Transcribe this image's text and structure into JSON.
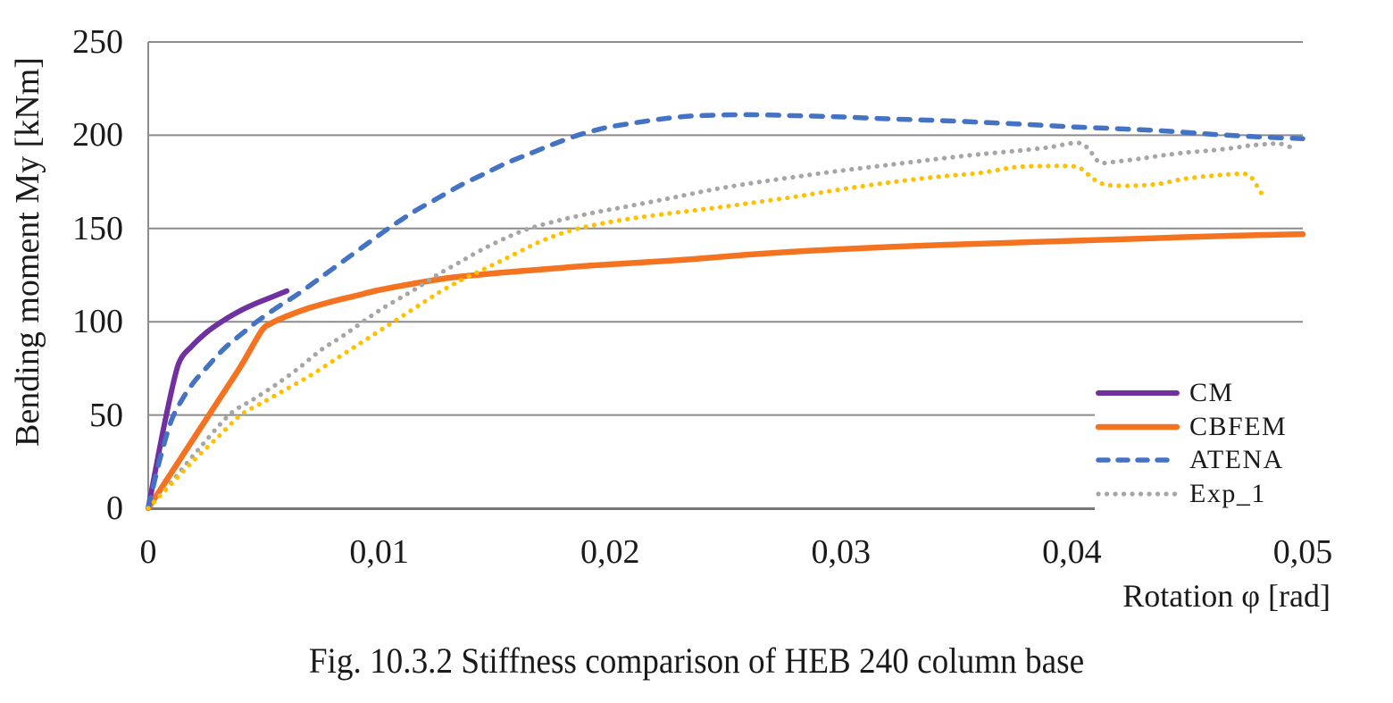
{
  "page": {
    "background": "#FFFFFF"
  },
  "chart_data": {
    "type": "line",
    "caption": "Fig. 10.3.2 Stiffness comparison of HEB 240 column base",
    "xlabel": "Rotation φ [rad]",
    "ylabel": "Bending moment My [kNm]",
    "xlim": [
      0,
      0.05
    ],
    "ylim": [
      0,
      250
    ],
    "x_ticks": {
      "values": [
        0,
        0.01,
        0.02,
        0.03,
        0.04,
        0.05
      ],
      "labels": [
        "0",
        "0,01",
        "0,02",
        "0,03",
        "0,04",
        "0,05"
      ]
    },
    "y_ticks": {
      "values": [
        0,
        50,
        100,
        150,
        200,
        250
      ],
      "labels": [
        "0",
        "50",
        "100",
        "150",
        "200",
        "250"
      ]
    },
    "grid": {
      "horizontal": true,
      "vertical": false
    },
    "style": {
      "grid_color": "#8C8C8C",
      "axis_color": "#767676",
      "text_color": "#1A1A1A"
    },
    "legend": {
      "position": "inside-bottom-right",
      "entries": [
        "CM",
        "CBFEM",
        "ATENA",
        "Exp_1"
      ]
    },
    "series": [
      {
        "name": "CM",
        "color": "#7030A0",
        "line_style": "solid",
        "width": 6,
        "in_legend": true,
        "points": [
          [
            0,
            0
          ],
          [
            0.0007,
            45
          ],
          [
            0.0013,
            77
          ],
          [
            0.0019,
            87
          ],
          [
            0.0026,
            95
          ],
          [
            0.0033,
            101
          ],
          [
            0.004,
            106
          ],
          [
            0.0047,
            110
          ],
          [
            0.0053,
            113
          ],
          [
            0.006,
            116.5
          ]
        ]
      },
      {
        "name": "CBFEM",
        "color": "#F47321",
        "line_style": "solid",
        "width": 6.5,
        "in_legend": true,
        "points": [
          [
            0,
            0
          ],
          [
            0.001,
            19
          ],
          [
            0.002,
            38
          ],
          [
            0.003,
            57
          ],
          [
            0.004,
            76
          ],
          [
            0.0049,
            95
          ],
          [
            0.0053,
            99
          ],
          [
            0.006,
            103
          ],
          [
            0.007,
            107.5
          ],
          [
            0.008,
            111
          ],
          [
            0.009,
            114
          ],
          [
            0.01,
            117
          ],
          [
            0.0115,
            120.5
          ],
          [
            0.013,
            123.5
          ],
          [
            0.015,
            126
          ],
          [
            0.017,
            128
          ],
          [
            0.019,
            130
          ],
          [
            0.021,
            131.5
          ],
          [
            0.0235,
            133.5
          ],
          [
            0.026,
            136
          ],
          [
            0.0285,
            138
          ],
          [
            0.031,
            139.5
          ],
          [
            0.0335,
            140.8
          ],
          [
            0.036,
            141.8
          ],
          [
            0.0385,
            142.8
          ],
          [
            0.041,
            143.8
          ],
          [
            0.0435,
            144.8
          ],
          [
            0.046,
            145.8
          ],
          [
            0.048,
            146.4
          ],
          [
            0.05,
            147
          ]
        ]
      },
      {
        "name": "ATENA",
        "color": "#4472C4",
        "line_style": "dashed",
        "width": 5.5,
        "in_legend": true,
        "points": [
          [
            0,
            0
          ],
          [
            0.0005,
            26
          ],
          [
            0.001,
            47
          ],
          [
            0.0015,
            59
          ],
          [
            0.002,
            68
          ],
          [
            0.0025,
            75
          ],
          [
            0.003,
            82
          ],
          [
            0.0035,
            88
          ],
          [
            0.004,
            93
          ],
          [
            0.0047,
            100
          ],
          [
            0.0055,
            107
          ],
          [
            0.0065,
            115
          ],
          [
            0.0075,
            124
          ],
          [
            0.0085,
            133
          ],
          [
            0.0095,
            142
          ],
          [
            0.0104,
            150
          ],
          [
            0.0115,
            159
          ],
          [
            0.0125,
            166
          ],
          [
            0.0135,
            173
          ],
          [
            0.0145,
            179
          ],
          [
            0.0155,
            185
          ],
          [
            0.0165,
            190
          ],
          [
            0.0175,
            195
          ],
          [
            0.0186,
            200
          ],
          [
            0.0198,
            204
          ],
          [
            0.021,
            206.5
          ],
          [
            0.0224,
            209
          ],
          [
            0.0238,
            210.5
          ],
          [
            0.026,
            211
          ],
          [
            0.028,
            210.5
          ],
          [
            0.03,
            209.8
          ],
          [
            0.032,
            208.8
          ],
          [
            0.034,
            208
          ],
          [
            0.036,
            207
          ],
          [
            0.038,
            205.8
          ],
          [
            0.04,
            204.5
          ],
          [
            0.042,
            203.5
          ],
          [
            0.044,
            202.3
          ],
          [
            0.0461,
            200.5
          ],
          [
            0.048,
            199.2
          ],
          [
            0.05,
            198.2
          ]
        ]
      },
      {
        "name": "Exp_1",
        "color": "#A6A6A6",
        "line_style": "dotted",
        "width": 5.2,
        "in_legend": true,
        "points": [
          [
            0,
            0
          ],
          [
            0.001,
            14
          ],
          [
            0.002,
            29
          ],
          [
            0.0035,
            50
          ],
          [
            0.0045,
            58
          ],
          [
            0.0055,
            66
          ],
          [
            0.0065,
            75
          ],
          [
            0.0075,
            85
          ],
          [
            0.0085,
            93
          ],
          [
            0.01,
            106
          ],
          [
            0.0115,
            117
          ],
          [
            0.0125,
            125
          ],
          [
            0.0135,
            132
          ],
          [
            0.0145,
            139
          ],
          [
            0.0155,
            145
          ],
          [
            0.0165,
            150
          ],
          [
            0.018,
            155
          ],
          [
            0.0195,
            159
          ],
          [
            0.0206,
            161.5
          ],
          [
            0.0225,
            166
          ],
          [
            0.0245,
            171
          ],
          [
            0.0265,
            175
          ],
          [
            0.0285,
            178.5
          ],
          [
            0.03,
            181
          ],
          [
            0.032,
            184
          ],
          [
            0.034,
            187
          ],
          [
            0.036,
            189.8
          ],
          [
            0.0375,
            191.5
          ],
          [
            0.039,
            193.5
          ],
          [
            0.0402,
            196
          ],
          [
            0.0407,
            193
          ],
          [
            0.0412,
            185.5
          ],
          [
            0.042,
            186
          ],
          [
            0.043,
            187.5
          ],
          [
            0.044,
            189.3
          ],
          [
            0.045,
            190.8
          ],
          [
            0.046,
            191.8
          ],
          [
            0.047,
            193.2
          ],
          [
            0.0477,
            194.5
          ],
          [
            0.0485,
            195.3
          ],
          [
            0.049,
            195.5
          ],
          [
            0.0495,
            193.5
          ]
        ]
      },
      {
        "name": "",
        "color": "#FFC000",
        "line_style": "dotted",
        "width": 5.2,
        "in_legend": false,
        "points": [
          [
            0,
            0
          ],
          [
            0.001,
            13
          ],
          [
            0.002,
            26
          ],
          [
            0.003,
            38
          ],
          [
            0.004,
            50
          ],
          [
            0.005,
            57
          ],
          [
            0.006,
            64
          ],
          [
            0.007,
            71
          ],
          [
            0.008,
            79
          ],
          [
            0.009,
            87
          ],
          [
            0.01,
            95
          ],
          [
            0.0115,
            107
          ],
          [
            0.0125,
            115
          ],
          [
            0.0135,
            122
          ],
          [
            0.0145,
            128
          ],
          [
            0.0155,
            134
          ],
          [
            0.0168,
            142
          ],
          [
            0.0178,
            147
          ],
          [
            0.0188,
            150.5
          ],
          [
            0.02,
            153.5
          ],
          [
            0.021,
            155.5
          ],
          [
            0.0225,
            158
          ],
          [
            0.0245,
            161
          ],
          [
            0.026,
            163.5
          ],
          [
            0.028,
            167
          ],
          [
            0.03,
            171
          ],
          [
            0.032,
            174.5
          ],
          [
            0.034,
            177.5
          ],
          [
            0.036,
            179.8
          ],
          [
            0.0373,
            182.5
          ],
          [
            0.038,
            183.3
          ],
          [
            0.039,
            183.5
          ],
          [
            0.0397,
            183.5
          ],
          [
            0.0403,
            182.8
          ],
          [
            0.0408,
            178
          ],
          [
            0.0412,
            174.5
          ],
          [
            0.0418,
            173
          ],
          [
            0.0428,
            173
          ],
          [
            0.0438,
            174
          ],
          [
            0.0448,
            176.5
          ],
          [
            0.0458,
            178
          ],
          [
            0.0468,
            179
          ],
          [
            0.0475,
            179.3
          ],
          [
            0.0478,
            177
          ],
          [
            0.0482,
            169
          ]
        ]
      }
    ]
  }
}
